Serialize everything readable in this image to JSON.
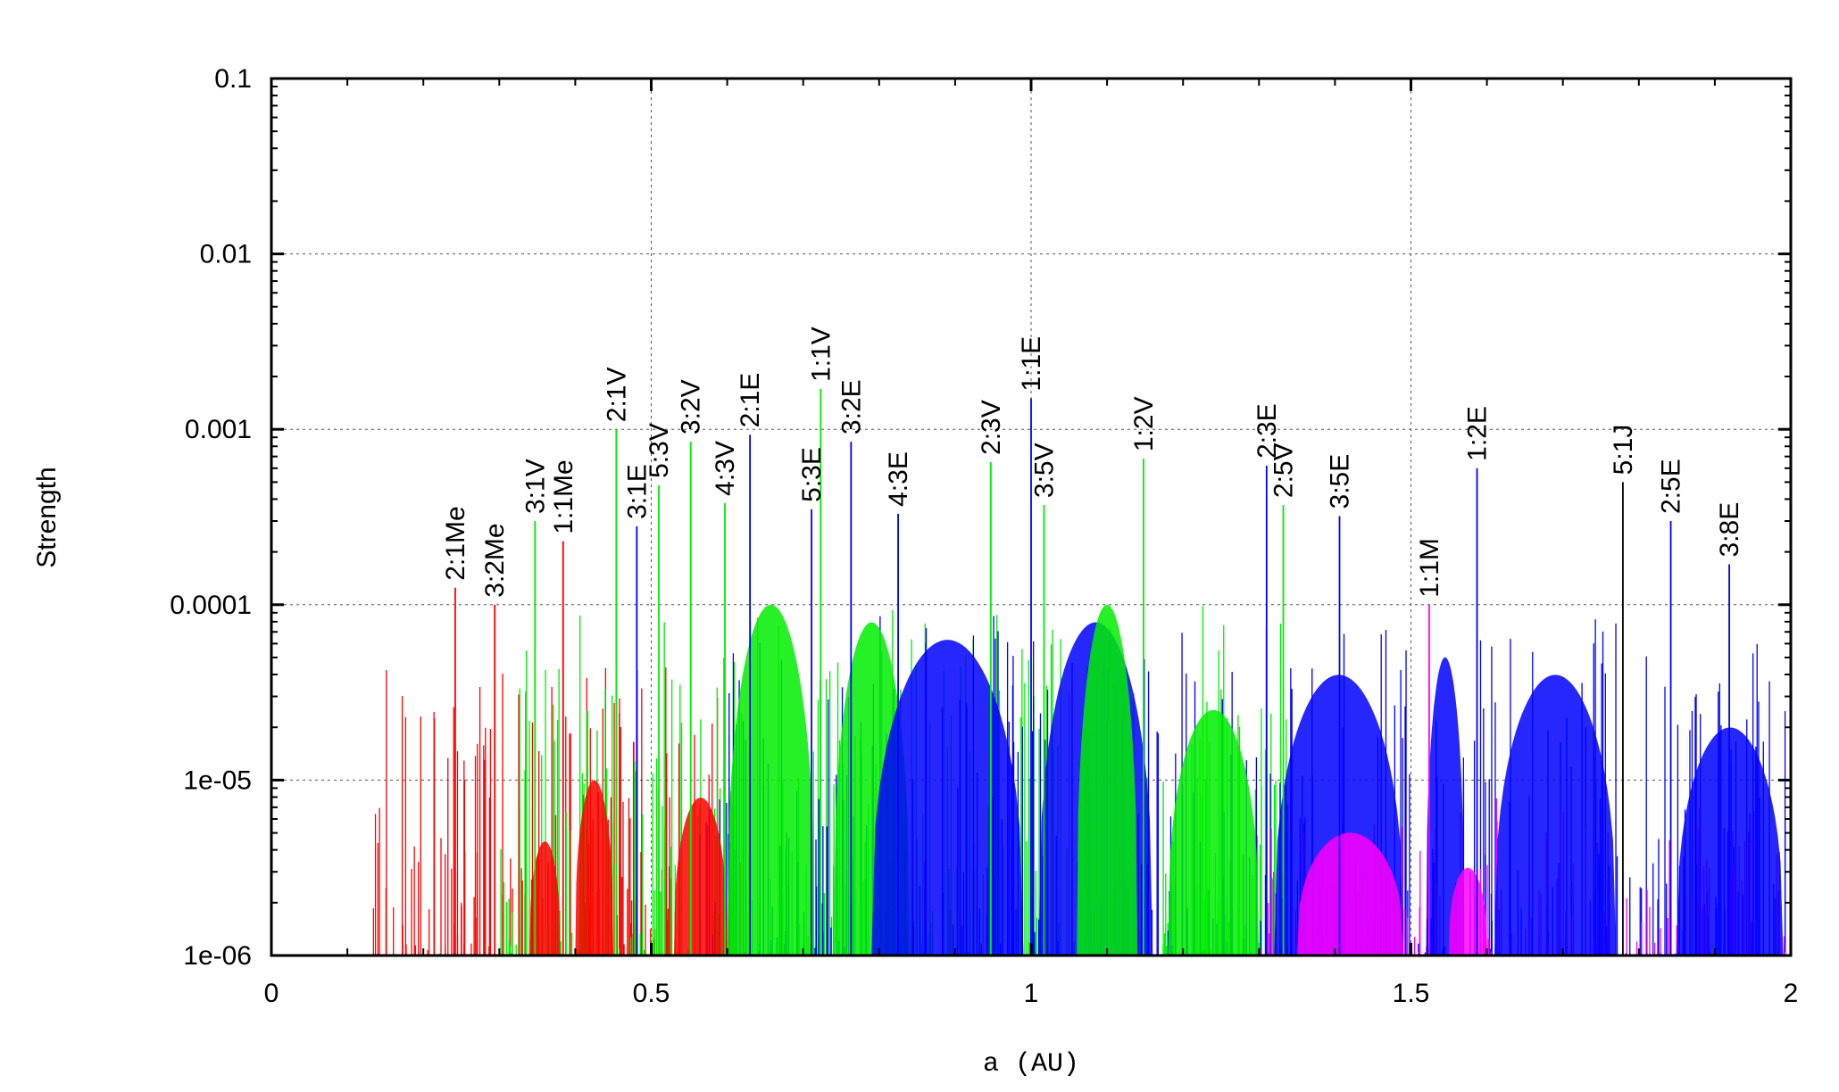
{
  "chart_data": {
    "type": "bar",
    "xlabel": "a (AU)",
    "ylabel": "Strength",
    "xlim": [
      0,
      2
    ],
    "ylim": [
      1e-06,
      0.1
    ],
    "yscale": "log",
    "grid": true,
    "xticks": [
      {
        "value": 0,
        "label": "0"
      },
      {
        "value": 0.5,
        "label": "0.5"
      },
      {
        "value": 1,
        "label": "1"
      },
      {
        "value": 1.5,
        "label": "1.5"
      },
      {
        "value": 2,
        "label": "2"
      }
    ],
    "yticks": [
      {
        "value": 1e-06,
        "label": "1e-06"
      },
      {
        "value": 1e-05,
        "label": "1e-05"
      },
      {
        "value": 0.0001,
        "label": "0.0001"
      },
      {
        "value": 0.001,
        "label": "0.001"
      },
      {
        "value": 0.01,
        "label": "0.01"
      },
      {
        "value": 0.1,
        "label": "0.1"
      }
    ],
    "colors": {
      "red": "#ff0000",
      "green": "#00ee00",
      "blue": "#0000ff",
      "magenta": "#ff00ff",
      "black": "#000000"
    },
    "resonances": [
      {
        "label": "2:1Me",
        "a": 0.242,
        "strength": 0.000125,
        "color": "red"
      },
      {
        "label": "3:2Me",
        "a": 0.294,
        "strength": 0.0001,
        "color": "red"
      },
      {
        "label": "3:1V",
        "a": 0.347,
        "strength": 0.0003,
        "color": "green"
      },
      {
        "label": "1:1Me",
        "a": 0.384,
        "strength": 0.00023,
        "color": "red"
      },
      {
        "label": "2:1V",
        "a": 0.454,
        "strength": 0.001,
        "color": "green"
      },
      {
        "label": "3:1E",
        "a": 0.481,
        "strength": 0.00028,
        "color": "blue"
      },
      {
        "label": "5:3V",
        "a": 0.51,
        "strength": 0.00048,
        "color": "green"
      },
      {
        "label": "3:2V",
        "a": 0.552,
        "strength": 0.00085,
        "color": "green"
      },
      {
        "label": "4:3V",
        "a": 0.597,
        "strength": 0.00038,
        "color": "green"
      },
      {
        "label": "2:1E",
        "a": 0.63,
        "strength": 0.00093,
        "color": "blue"
      },
      {
        "label": "5:3E",
        "a": 0.711,
        "strength": 0.00035,
        "color": "blue"
      },
      {
        "label": "1:1V",
        "a": 0.723,
        "strength": 0.0017,
        "color": "green"
      },
      {
        "label": "3:2E",
        "a": 0.763,
        "strength": 0.00085,
        "color": "blue"
      },
      {
        "label": "4:3E",
        "a": 0.825,
        "strength": 0.00033,
        "color": "blue"
      },
      {
        "label": "2:3V",
        "a": 0.947,
        "strength": 0.00065,
        "color": "green"
      },
      {
        "label": "1:1E",
        "a": 1.0,
        "strength": 0.0015,
        "color": "blue"
      },
      {
        "label": "3:5V",
        "a": 1.017,
        "strength": 0.00037,
        "color": "green"
      },
      {
        "label": "1:2V",
        "a": 1.148,
        "strength": 0.00068,
        "color": "green"
      },
      {
        "label": "2:3E",
        "a": 1.31,
        "strength": 0.00062,
        "color": "blue"
      },
      {
        "label": "2:5V",
        "a": 1.332,
        "strength": 0.00037,
        "color": "green"
      },
      {
        "label": "3:5E",
        "a": 1.406,
        "strength": 0.00032,
        "color": "blue"
      },
      {
        "label": "1:1M",
        "a": 1.524,
        "strength": 0.0001,
        "color": "magenta"
      },
      {
        "label": "1:2E",
        "a": 1.587,
        "strength": 0.0006,
        "color": "blue"
      },
      {
        "label": "5:1J",
        "a": 1.779,
        "strength": 0.0005,
        "color": "black"
      },
      {
        "label": "2:5E",
        "a": 1.842,
        "strength": 0.0003,
        "color": "blue"
      },
      {
        "label": "3:8E",
        "a": 1.919,
        "strength": 0.00017,
        "color": "blue"
      }
    ]
  }
}
